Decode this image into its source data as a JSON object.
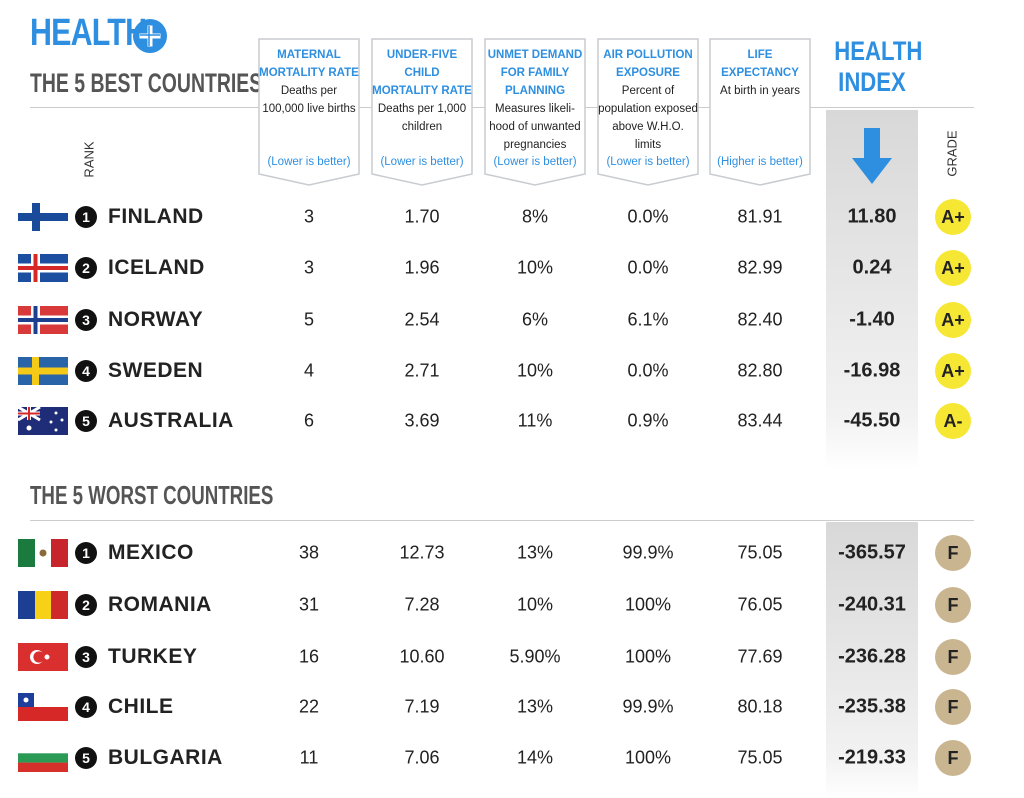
{
  "header": {
    "title": "HEALTH",
    "subtitle": "THE 5 BEST COUNTRIES"
  },
  "columns": [
    {
      "title": "MATERNAL MORTALITY RATE",
      "description": "Deaths per 100,000 live births",
      "note": "(Lower is better)"
    },
    {
      "title": "UNDER-FIVE CHILD MORTALITY RATE",
      "description": "Deaths per 1,000 children",
      "note": "(Lower is better)"
    },
    {
      "title": "UNMET DEMAND FOR FAMILY PLANNING",
      "description": "Measures likeli-hood of unwanted pregnancies",
      "note": "(Lower is better)"
    },
    {
      "title": "AIR POLLUTION EXPOSURE",
      "description": "Percent of population exposed above W.H.O. limits",
      "note": "(Lower is better)"
    },
    {
      "title": "LIFE EXPECTANCY",
      "description": "At birth in years",
      "note": "(Higher is better)"
    }
  ],
  "index_title": "HEALTH INDEX",
  "rank_label": "RANK",
  "grade_label": "GRADE",
  "best": {
    "rows": [
      {
        "rank": "1",
        "country": "FINLAND",
        "values": [
          "3",
          "1.70",
          "8%",
          "0.0%",
          "81.91"
        ],
        "index": "11.80",
        "grade": "A+"
      },
      {
        "rank": "2",
        "country": "ICELAND",
        "values": [
          "3",
          "1.96",
          "10%",
          "0.0%",
          "82.99"
        ],
        "index": "0.24",
        "grade": "A+"
      },
      {
        "rank": "3",
        "country": "NORWAY",
        "values": [
          "5",
          "2.54",
          "6%",
          "6.1%",
          "82.40"
        ],
        "index": "-1.40",
        "grade": "A+"
      },
      {
        "rank": "4",
        "country": "SWEDEN",
        "values": [
          "4",
          "2.71",
          "10%",
          "0.0%",
          "82.80"
        ],
        "index": "-16.98",
        "grade": "A+"
      },
      {
        "rank": "5",
        "country": "AUSTRALIA",
        "values": [
          "6",
          "3.69",
          "11%",
          "0.9%",
          "83.44"
        ],
        "index": "-45.50",
        "grade": "A-"
      }
    ]
  },
  "worst": {
    "title": "THE 5 WORST COUNTRIES",
    "rows": [
      {
        "rank": "1",
        "country": "MEXICO",
        "values": [
          "38",
          "12.73",
          "13%",
          "99.9%",
          "75.05"
        ],
        "index": "-365.57",
        "grade": "F"
      },
      {
        "rank": "2",
        "country": "ROMANIA",
        "values": [
          "31",
          "7.28",
          "10%",
          "100%",
          "76.05"
        ],
        "index": "-240.31",
        "grade": "F"
      },
      {
        "rank": "3",
        "country": "TURKEY",
        "values": [
          "16",
          "10.60",
          "5.90%",
          "100%",
          "77.69"
        ],
        "index": "-236.28",
        "grade": "F"
      },
      {
        "rank": "4",
        "country": "CHILE",
        "values": [
          "22",
          "7.19",
          "13%",
          "99.9%",
          "80.18"
        ],
        "index": "-235.38",
        "grade": "F"
      },
      {
        "rank": "5",
        "country": "BULGARIA",
        "values": [
          "11",
          "7.06",
          "14%",
          "100%",
          "75.05"
        ],
        "index": "-219.33",
        "grade": "F"
      }
    ]
  }
}
